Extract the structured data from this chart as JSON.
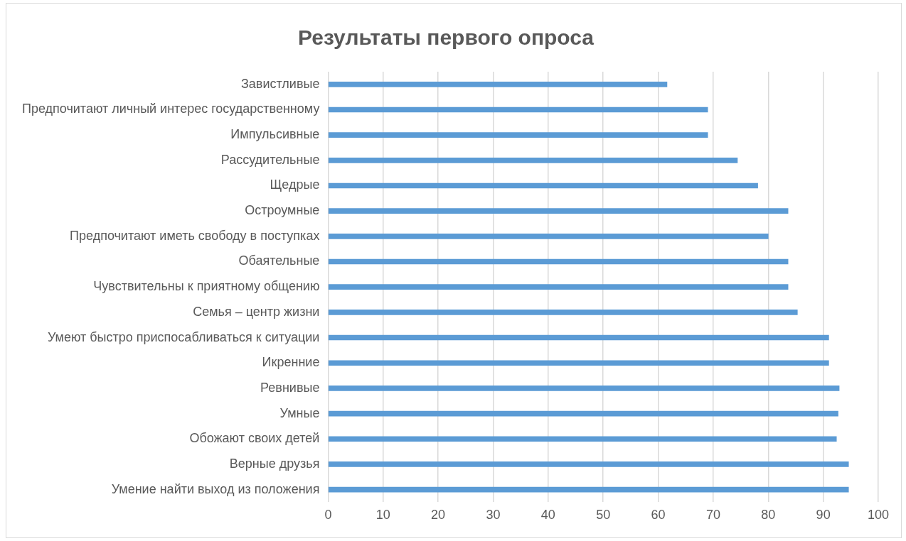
{
  "chart_data": {
    "type": "bar",
    "orientation": "horizontal",
    "title": "Результаты первого опроса",
    "categories": [
      "Завистливые",
      "Предпочитают личный интерес государственному",
      "Импульсивные",
      "Рассудительные",
      "Щедрые",
      "Остроумные",
      "Предпочитают иметь свободу в поступках",
      "Обаятельные",
      "Чувствительны к приятному общению",
      "Семья – центр жизни",
      "Умеют быстро приспосабливаться к ситуации",
      "Икренние",
      "Ревнивые",
      "Умные",
      "Обожают своих детей",
      "Верные друзья",
      "Умение найти выход из положения"
    ],
    "values": [
      61.6,
      69,
      69,
      74.4,
      78.1,
      83.6,
      80,
      83.6,
      83.6,
      85.3,
      91,
      91,
      92.9,
      92.7,
      92.4,
      94.6,
      94.6
    ],
    "color": "#5b9bd5",
    "xlim": [
      0,
      100
    ],
    "xticks": [
      0,
      10,
      20,
      30,
      40,
      50,
      60,
      70,
      80,
      90,
      100
    ],
    "grid": "x",
    "legend": false
  }
}
